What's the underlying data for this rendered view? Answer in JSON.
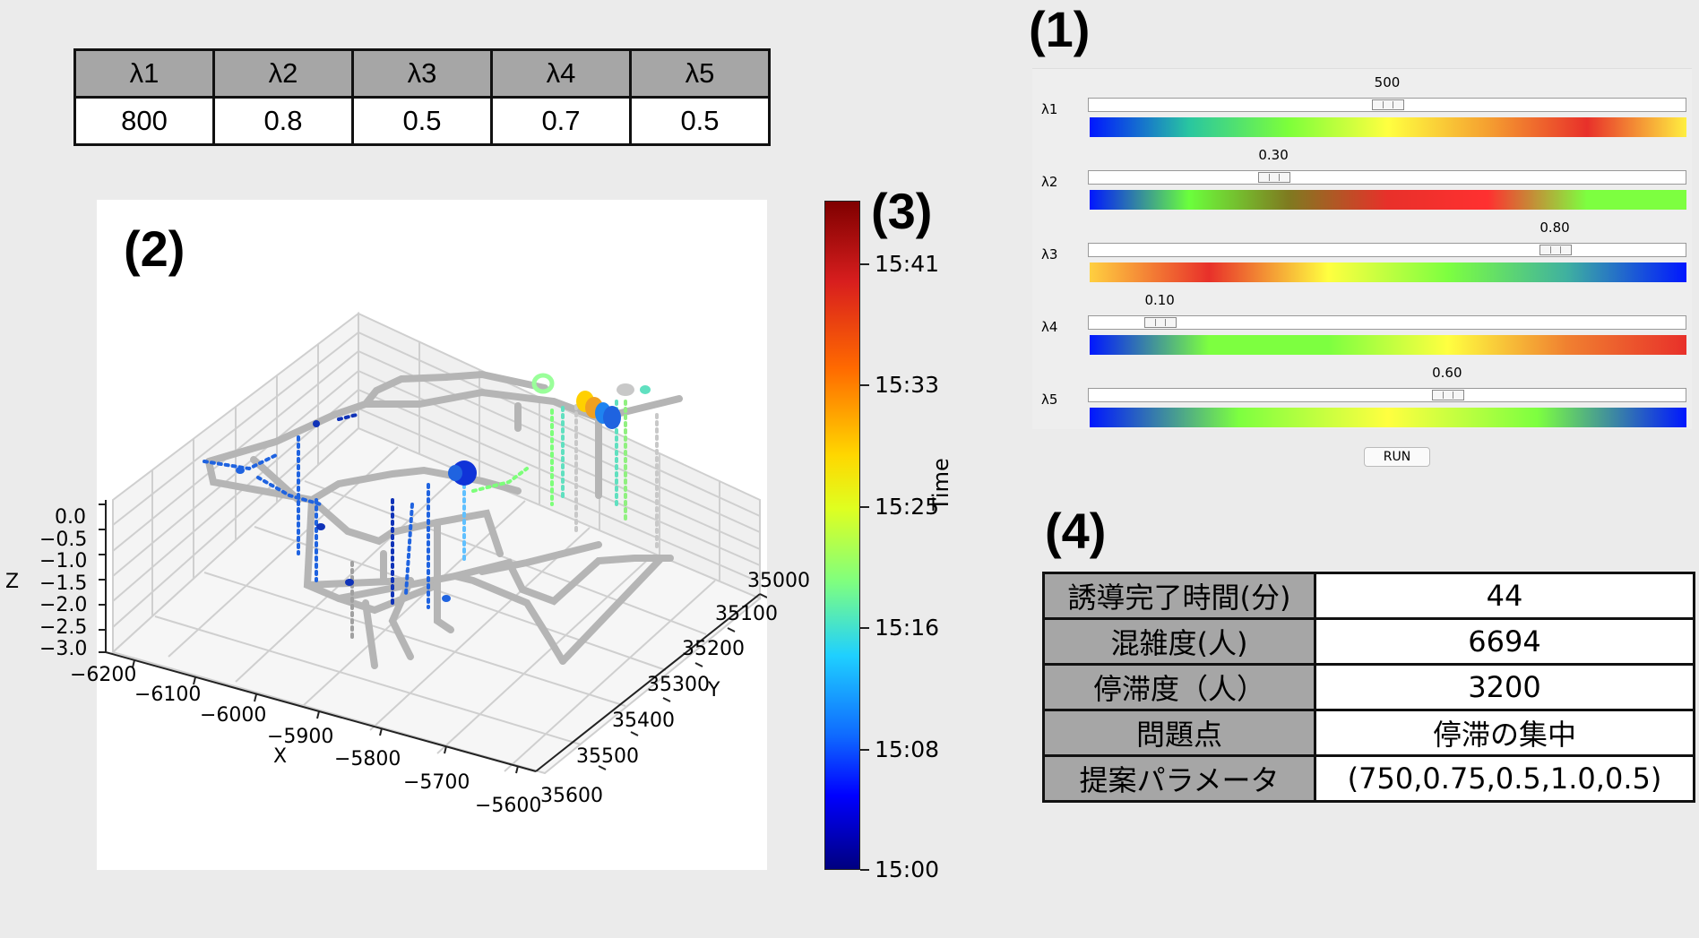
{
  "param_table": {
    "headers": [
      "λ1",
      "λ2",
      "λ3",
      "λ4",
      "λ5"
    ],
    "values": [
      "800",
      "0.8",
      "0.5",
      "0.7",
      "0.5"
    ]
  },
  "section_labels": {
    "one": "(1)",
    "two": "(2)",
    "three": "(3)",
    "four": "(4)"
  },
  "plot": {
    "x_label": "X",
    "y_label": "Y",
    "z_label": "Z",
    "x_ticks": [
      "−6200",
      "−6100",
      "−6000",
      "−5900",
      "−5800",
      "−5700",
      "−5600"
    ],
    "y_ticks": [
      "35000",
      "35100",
      "35200",
      "35300",
      "35400",
      "35500",
      "35600"
    ],
    "z_ticks": [
      "0.0",
      "−0.5",
      "−1.0",
      "−1.5",
      "−2.0",
      "−2.5",
      "−3.0"
    ]
  },
  "colorbar": {
    "title": "Time",
    "ticks": [
      "15:41",
      "15:33",
      "15:25",
      "15:16",
      "15:08",
      "15:00"
    ]
  },
  "sliders": [
    {
      "label": "λ1",
      "value": "500",
      "position": 0.5,
      "gradient": [
        "#0017ff",
        "#29c6a0",
        "#7dff3a",
        "#ffff40",
        "#f5a030",
        "#e8302a",
        "#ffef40"
      ]
    },
    {
      "label": "λ2",
      "value": "0.30",
      "position": 0.31,
      "gradient": [
        "#0017ff",
        "#6bff3c",
        "#7f7a20",
        "#e8302a",
        "#ff3030",
        "#7dff40",
        "#7dff40"
      ]
    },
    {
      "label": "λ3",
      "value": "0.80",
      "position": 0.78,
      "gradient": [
        "#ffd040",
        "#e8302a",
        "#ffff40",
        "#7dff40",
        "#3fb0a0",
        "#0017ff"
      ]
    },
    {
      "label": "λ4",
      "value": "0.10",
      "position": 0.12,
      "gradient": [
        "#0017ff",
        "#7dff40",
        "#7dff40",
        "#ffff40",
        "#f08030",
        "#e8302a"
      ]
    },
    {
      "label": "λ5",
      "value": "0.60",
      "position": 0.6,
      "gradient": [
        "#0017ff",
        "#7dff40",
        "#ffff40",
        "#7dff40",
        "#0017ff"
      ]
    }
  ],
  "run_label": "RUN",
  "results": [
    {
      "key": "誘導完了時間(分)",
      "value": "44"
    },
    {
      "key": "混雑度(人)",
      "value": "6694"
    },
    {
      "key": "停滞度（人）",
      "value": "3200"
    },
    {
      "key": "問題点",
      "value": "停滞の集中"
    },
    {
      "key": "提案パラメータ",
      "value": "(750,0.75,0.5,1.0,0.5)"
    }
  ]
}
